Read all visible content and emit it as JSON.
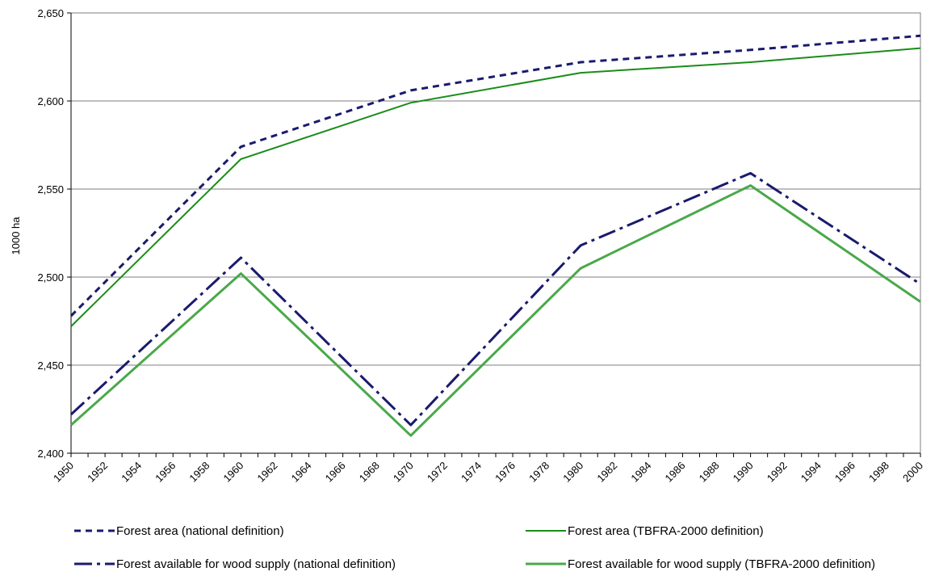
{
  "chart_data": {
    "type": "line",
    "title": "",
    "xlabel": "",
    "ylabel": "1000 ha",
    "ylim": [
      2400,
      2650
    ],
    "yticks": [
      2400,
      2450,
      2500,
      2550,
      2600,
      2650
    ],
    "ytick_labels": [
      "2,400",
      "2,450",
      "2,500",
      "2,550",
      "2,600",
      "2,650"
    ],
    "xlim": [
      1950,
      2000
    ],
    "xticks": [
      1950,
      1952,
      1954,
      1956,
      1958,
      1960,
      1962,
      1964,
      1966,
      1968,
      1970,
      1972,
      1974,
      1976,
      1978,
      1980,
      1982,
      1984,
      1986,
      1988,
      1990,
      1992,
      1994,
      1996,
      1998,
      2000
    ],
    "xtick_labels": [
      "1950",
      "1952",
      "1954",
      "1956",
      "1958",
      "1960",
      "1962",
      "1964",
      "1966",
      "1968",
      "1970",
      "1972",
      "1974",
      "1976",
      "1978",
      "1980",
      "1982",
      "1984",
      "1986",
      "1988",
      "1990",
      "1992",
      "1994",
      "1996",
      "1998",
      "2000"
    ],
    "grid": "horizontal",
    "legend_position": "bottom",
    "series": [
      {
        "name": "Forest area (national definition)",
        "color": "#1a1a6e",
        "style": "dotted",
        "points": [
          [
            1950,
            2478
          ],
          [
            1960,
            2574
          ],
          [
            1970,
            2606
          ],
          [
            1980,
            2622
          ],
          [
            1990,
            2629
          ],
          [
            2000,
            2637
          ]
        ]
      },
      {
        "name": "Forest area (TBFRA-2000 definition)",
        "color": "#1a8c1a",
        "style": "solid",
        "points": [
          [
            1950,
            2472
          ],
          [
            1960,
            2567
          ],
          [
            1970,
            2599
          ],
          [
            1980,
            2616
          ],
          [
            1990,
            2622
          ],
          [
            2000,
            2630
          ]
        ]
      },
      {
        "name": "Forest available for wood supply (national definition)",
        "color": "#1a1a6e",
        "style": "dashdot",
        "points": [
          [
            1950,
            2422
          ],
          [
            1960,
            2511
          ],
          [
            1970,
            2416
          ],
          [
            1980,
            2518
          ],
          [
            1990,
            2559
          ],
          [
            2000,
            2496
          ]
        ]
      },
      {
        "name": "Forest available for wood supply (TBFRA-2000 definition)",
        "color": "#4aa84a",
        "style": "solid-light",
        "points": [
          [
            1950,
            2416
          ],
          [
            1960,
            2502
          ],
          [
            1970,
            2410
          ],
          [
            1980,
            2505
          ],
          [
            1990,
            2552
          ],
          [
            2000,
            2486
          ]
        ]
      }
    ]
  }
}
